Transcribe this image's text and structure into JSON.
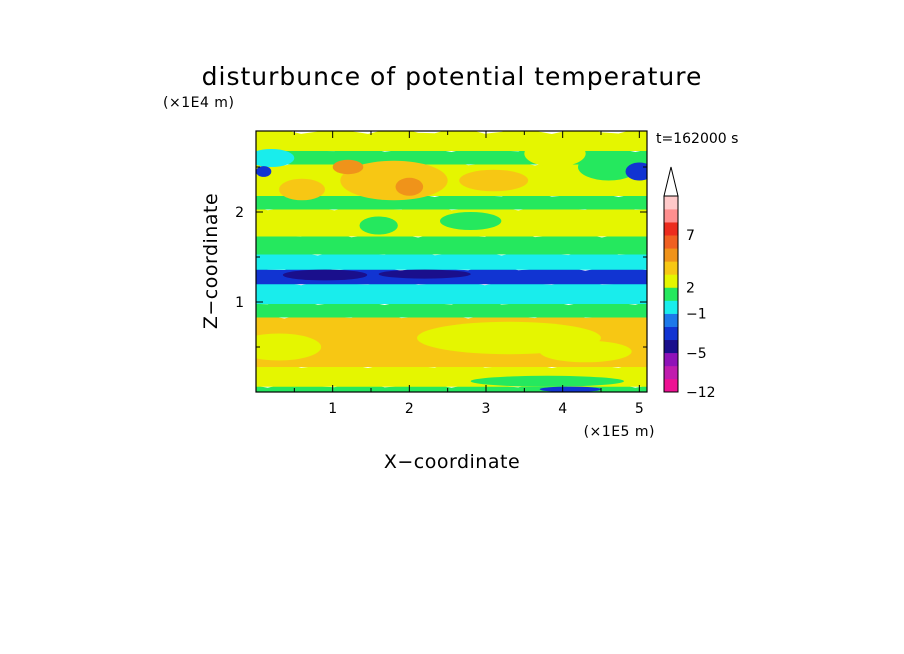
{
  "chart_data": {
    "type": "heatmap",
    "title": "disturbunce of potential temperature",
    "xlabel": "X−coordinate",
    "ylabel": "Z−coordinate",
    "x_unit": "(×1E5 m)",
    "y_unit": "(×1E4 m)",
    "time_label": "t=162000 s",
    "xlim": [
      0,
      5.1
    ],
    "ylim": [
      0,
      2.9
    ],
    "x_ticks": [
      {
        "value": 1,
        "label": "1"
      },
      {
        "value": 2,
        "label": "2"
      },
      {
        "value": 3,
        "label": "3"
      },
      {
        "value": 4,
        "label": "4"
      },
      {
        "value": 5,
        "label": "5"
      }
    ],
    "y_ticks": [
      {
        "value": 1,
        "label": "1"
      },
      {
        "value": 2,
        "label": "2"
      }
    ],
    "colorbar": {
      "level_colors": [
        "#ee1193",
        "#c01cae",
        "#8f12b8",
        "#1a0f8c",
        "#1134d2",
        "#1d79ea",
        "#19edec",
        "#25e85e",
        "#e5f600",
        "#f7c714",
        "#f0931a",
        "#f06022",
        "#ec2c1e",
        "#ff8f8f",
        "#ffc9c9"
      ],
      "tick_labels": [
        {
          "level_index": 0,
          "label": "−12"
        },
        {
          "level_index": 3,
          "label": "−5"
        },
        {
          "level_index": 6,
          "label": "−1"
        },
        {
          "level_index": 8,
          "label": "2"
        },
        {
          "level_index": 12,
          "label": "7"
        }
      ],
      "extend": "max"
    },
    "bands": [
      {
        "z": [
          0.0,
          0.08
        ],
        "color": "#25e85e"
      },
      {
        "z": [
          0.08,
          0.3
        ],
        "color": "#e5f600"
      },
      {
        "z": [
          0.3,
          0.85
        ],
        "color": "#f7c714"
      },
      {
        "z": [
          0.85,
          1.0
        ],
        "color": "#25e85e"
      },
      {
        "z": [
          1.0,
          1.22
        ],
        "color": "#19edec"
      },
      {
        "z": [
          1.22,
          1.38
        ],
        "color": "#1134d2"
      },
      {
        "z": [
          1.38,
          1.55
        ],
        "color": "#19edec"
      },
      {
        "z": [
          1.55,
          1.75
        ],
        "color": "#25e85e"
      },
      {
        "z": [
          1.75,
          2.05
        ],
        "color": "#e5f600"
      },
      {
        "z": [
          2.05,
          2.2
        ],
        "color": "#25e85e"
      },
      {
        "z": [
          2.2,
          2.55
        ],
        "color": "#e5f600"
      },
      {
        "z": [
          2.55,
          2.7
        ],
        "color": "#25e85e"
      },
      {
        "z": [
          2.7,
          2.9
        ],
        "color": "#e5f600"
      }
    ],
    "patches": [
      {
        "x": 0.3,
        "z": 0.5,
        "rx": 0.55,
        "rz": 0.15,
        "color": "#e5f600"
      },
      {
        "x": 3.3,
        "z": 0.6,
        "rx": 1.2,
        "rz": 0.18,
        "color": "#e5f600"
      },
      {
        "x": 4.3,
        "z": 0.45,
        "rx": 0.6,
        "rz": 0.12,
        "color": "#e5f600"
      },
      {
        "x": 3.8,
        "z": 0.12,
        "rx": 1.0,
        "rz": 0.06,
        "color": "#25e85e"
      },
      {
        "x": 4.1,
        "z": 0.03,
        "rx": 0.4,
        "rz": 0.03,
        "color": "#1134d2"
      },
      {
        "x": 0.9,
        "z": 1.3,
        "rx": 0.55,
        "rz": 0.06,
        "color": "#1a0f8c"
      },
      {
        "x": 2.2,
        "z": 1.31,
        "rx": 0.6,
        "rz": 0.05,
        "color": "#1a0f8c"
      },
      {
        "x": 1.6,
        "z": 1.85,
        "rx": 0.25,
        "rz": 0.1,
        "color": "#25e85e"
      },
      {
        "x": 2.8,
        "z": 1.9,
        "rx": 0.4,
        "rz": 0.1,
        "color": "#25e85e"
      },
      {
        "x": 0.6,
        "z": 2.25,
        "rx": 0.3,
        "rz": 0.12,
        "color": "#f7c714"
      },
      {
        "x": 1.8,
        "z": 2.35,
        "rx": 0.7,
        "rz": 0.22,
        "color": "#f7c714"
      },
      {
        "x": 3.1,
        "z": 2.35,
        "rx": 0.45,
        "rz": 0.12,
        "color": "#f7c714"
      },
      {
        "x": 1.2,
        "z": 2.5,
        "rx": 0.2,
        "rz": 0.08,
        "color": "#f0931a"
      },
      {
        "x": 2.0,
        "z": 2.28,
        "rx": 0.18,
        "rz": 0.1,
        "color": "#f0931a"
      },
      {
        "x": 4.6,
        "z": 2.5,
        "rx": 0.4,
        "rz": 0.15,
        "color": "#25e85e"
      },
      {
        "x": 0.2,
        "z": 2.6,
        "rx": 0.3,
        "rz": 0.1,
        "color": "#19edec"
      },
      {
        "x": 5.0,
        "z": 2.45,
        "rx": 0.18,
        "rz": 0.1,
        "color": "#1134d2"
      },
      {
        "x": 0.1,
        "z": 2.45,
        "rx": 0.1,
        "rz": 0.06,
        "color": "#1134d2"
      },
      {
        "x": 3.9,
        "z": 2.65,
        "rx": 0.4,
        "rz": 0.15,
        "color": "#e5f600"
      }
    ]
  }
}
